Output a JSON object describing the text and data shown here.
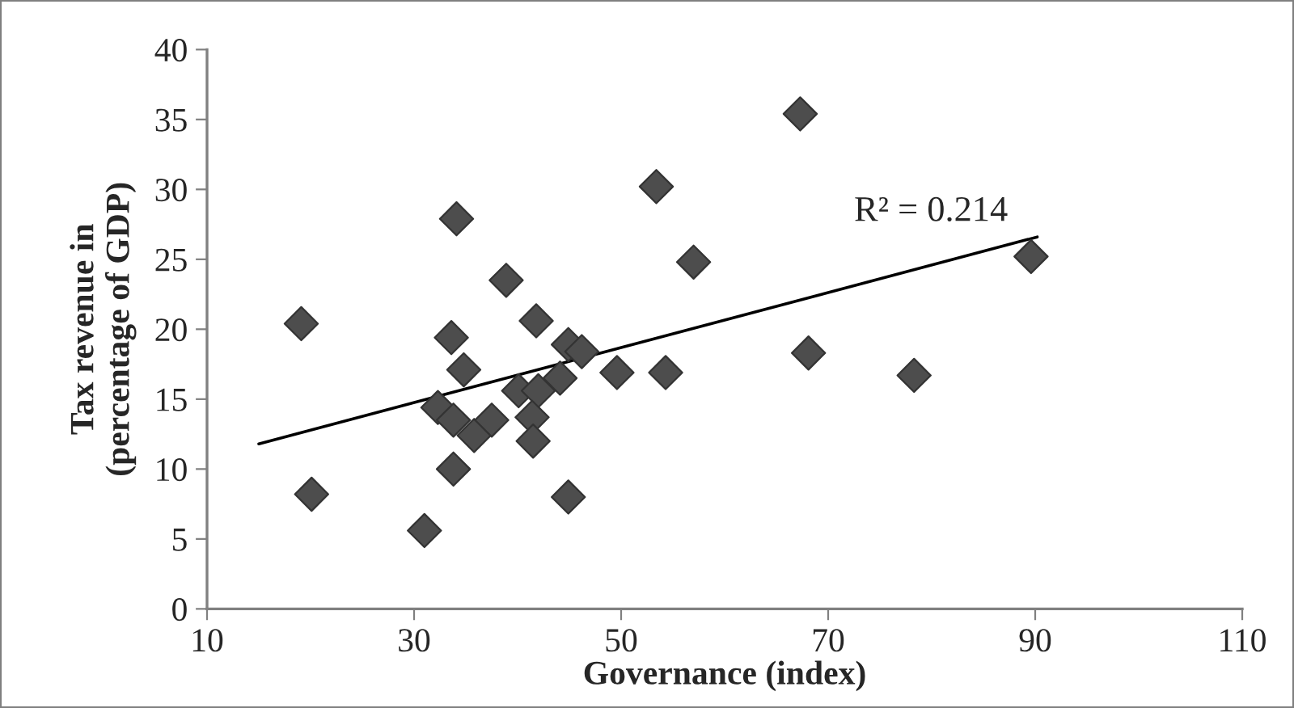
{
  "chart_data": {
    "type": "scatter",
    "xlabel": "Governance (index)",
    "ylabel": "Tax revenue in\n(percentage of GDP)",
    "xlim": [
      10,
      110
    ],
    "xticks": [
      10,
      30,
      50,
      70,
      90,
      110
    ],
    "ylim": [
      0,
      40
    ],
    "yticks": [
      0,
      5,
      10,
      15,
      20,
      25,
      30,
      35,
      40
    ],
    "grid": false,
    "legend": false,
    "annotations": [
      "R² = 0.214"
    ],
    "series": [
      {
        "color": "#4d4d4d",
        "marker": "diamond",
        "x": [
          19.1,
          20.1,
          31.0,
          32.3,
          33.6,
          33.8,
          33.8,
          34.1,
          34.8,
          35.8,
          37.5,
          38.9,
          40.1,
          41.8,
          42.0,
          41.4,
          41.5,
          44.1,
          44.9,
          44.9,
          46.2,
          49.6,
          53.4,
          57.0,
          54.3,
          67.3,
          68.1,
          78.3,
          89.6
        ],
        "values": [
          20.4,
          8.2,
          5.6,
          14.4,
          19.4,
          13.5,
          10.0,
          27.9,
          17.1,
          12.4,
          13.5,
          23.5,
          15.6,
          20.6,
          15.6,
          13.7,
          12.0,
          16.5,
          18.9,
          8.0,
          18.4,
          16.9,
          30.2,
          24.8,
          16.9,
          35.4,
          18.3,
          16.7,
          25.2
        ]
      },
      {
        "type": "line",
        "marker": "none",
        "color": "#000000",
        "x": [
          15.0,
          90.2
        ],
        "values": [
          11.8,
          26.6
        ]
      }
    ]
  }
}
